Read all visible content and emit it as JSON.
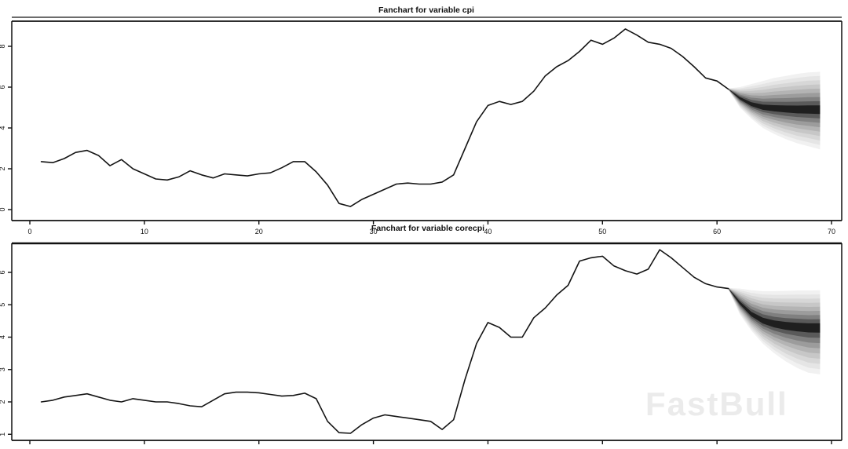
{
  "page": {
    "watermark": "FastBull",
    "watermark_color": "#ebebeb",
    "background": "#ffffff",
    "line_color": "#141414"
  },
  "chart_data": [
    {
      "type": "line",
      "subtype": "fanchart",
      "title": "Fanchart for variable cpi",
      "variable": "cpi",
      "xlabel": "",
      "ylabel": "",
      "xlim": [
        0,
        70
      ],
      "ylim": [
        -0.5,
        9.3
      ],
      "grid": false,
      "legend": "none",
      "x_ticks": [
        0,
        10,
        20,
        30,
        40,
        50,
        60,
        70
      ],
      "y_ticks": [
        0,
        2,
        4,
        6,
        8
      ],
      "x_tick_labels_visible": true,
      "history": {
        "x_start": 1,
        "values": [
          2.35,
          2.3,
          2.5,
          2.8,
          2.9,
          2.65,
          2.15,
          2.45,
          2.0,
          1.75,
          1.5,
          1.45,
          1.6,
          1.9,
          1.7,
          1.55,
          1.75,
          1.7,
          1.65,
          1.75,
          1.8,
          2.05,
          2.35,
          2.35,
          1.85,
          1.2,
          0.3,
          0.15,
          0.5,
          0.75,
          1.0,
          1.25,
          1.3,
          1.25,
          1.25,
          1.35,
          1.7,
          3.0,
          4.3,
          5.1,
          5.3,
          5.15,
          5.3,
          5.8,
          6.55,
          7.0,
          7.3,
          7.75,
          8.3,
          8.1,
          8.4,
          8.85,
          8.55,
          8.2,
          8.1,
          7.9,
          7.5,
          7.0,
          6.45,
          6.3,
          5.9
        ]
      },
      "forecast": [
        {
          "x": 61,
          "center": 5.9,
          "upper": 5.93,
          "lower": 5.87
        },
        {
          "x": 62,
          "center": 5.45,
          "upper": 6.0,
          "lower": 5.0
        },
        {
          "x": 63,
          "center": 5.15,
          "upper": 6.15,
          "lower": 4.45
        },
        {
          "x": 64,
          "center": 5.0,
          "upper": 6.3,
          "lower": 4.0
        },
        {
          "x": 65,
          "center": 4.95,
          "upper": 6.45,
          "lower": 3.7
        },
        {
          "x": 66,
          "center": 4.92,
          "upper": 6.55,
          "lower": 3.45
        },
        {
          "x": 67,
          "center": 4.9,
          "upper": 6.65,
          "lower": 3.25
        },
        {
          "x": 68,
          "center": 4.9,
          "upper": 6.72,
          "lower": 3.1
        },
        {
          "x": 69,
          "center": 4.9,
          "upper": 6.75,
          "lower": 2.95
        }
      ],
      "fan_colors": [
        "#f1f1f1",
        "#e5e5e5",
        "#d7d7d7",
        "#c7c7c7",
        "#b4b4b4",
        "#9c9c9c",
        "#808080",
        "#5a5a5a",
        "#1f1f1f"
      ]
    },
    {
      "type": "line",
      "subtype": "fanchart",
      "title": "Fanchart for variable corecpi",
      "variable": "corecpi",
      "xlabel": "",
      "ylabel": "",
      "xlim": [
        0,
        70
      ],
      "ylim": [
        0.8,
        6.9
      ],
      "grid": false,
      "legend": "none",
      "x_ticks": [
        0,
        10,
        20,
        30,
        40,
        50,
        60,
        70
      ],
      "y_ticks": [
        1,
        2,
        3,
        4,
        5,
        6
      ],
      "x_tick_labels_visible": false,
      "history": {
        "x_start": 1,
        "values": [
          2.0,
          2.05,
          2.15,
          2.2,
          2.25,
          2.15,
          2.05,
          2.0,
          2.1,
          2.05,
          2.0,
          2.0,
          1.95,
          1.88,
          1.85,
          2.05,
          2.25,
          2.3,
          2.3,
          2.28,
          2.23,
          2.18,
          2.2,
          2.27,
          2.1,
          1.4,
          1.05,
          1.03,
          1.3,
          1.5,
          1.6,
          1.55,
          1.5,
          1.45,
          1.4,
          1.15,
          1.45,
          2.7,
          3.8,
          4.45,
          4.3,
          4.0,
          4.0,
          4.6,
          4.9,
          5.3,
          5.6,
          6.35,
          6.45,
          6.5,
          6.2,
          6.05,
          5.95,
          6.1,
          6.7,
          6.45,
          6.15,
          5.85,
          5.65,
          5.55,
          5.5
        ]
      },
      "forecast": [
        {
          "x": 61,
          "center": 5.5,
          "upper": 5.52,
          "lower": 5.48
        },
        {
          "x": 62,
          "center": 5.05,
          "upper": 5.5,
          "lower": 4.7
        },
        {
          "x": 63,
          "center": 4.7,
          "upper": 5.45,
          "lower": 4.2
        },
        {
          "x": 64,
          "center": 4.5,
          "upper": 5.42,
          "lower": 3.8
        },
        {
          "x": 65,
          "center": 4.4,
          "upper": 5.42,
          "lower": 3.5
        },
        {
          "x": 66,
          "center": 4.35,
          "upper": 5.43,
          "lower": 3.25
        },
        {
          "x": 67,
          "center": 4.32,
          "upper": 5.44,
          "lower": 3.05
        },
        {
          "x": 68,
          "center": 4.3,
          "upper": 5.44,
          "lower": 2.9
        },
        {
          "x": 69,
          "center": 4.3,
          "upper": 5.45,
          "lower": 2.85
        }
      ],
      "fan_colors": [
        "#f1f1f1",
        "#e5e5e5",
        "#d7d7d7",
        "#c7c7c7",
        "#b4b4b4",
        "#9c9c9c",
        "#808080",
        "#5a5a5a",
        "#1f1f1f"
      ]
    }
  ]
}
